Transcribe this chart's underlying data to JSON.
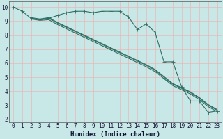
{
  "line1_x": [
    0,
    1,
    2,
    3,
    4,
    5,
    6,
    7,
    8,
    9,
    10,
    11,
    12,
    13,
    14,
    15,
    16,
    17,
    18,
    19,
    20,
    21,
    22,
    23
  ],
  "line1_y": [
    10.0,
    9.7,
    9.2,
    9.1,
    9.2,
    9.4,
    9.6,
    9.7,
    9.7,
    9.6,
    9.7,
    9.7,
    9.7,
    9.3,
    8.4,
    8.8,
    8.2,
    6.1,
    6.1,
    4.3,
    3.3,
    3.3,
    2.5,
    2.6
  ],
  "line2_x": [
    2,
    3,
    4,
    5,
    6,
    7,
    8,
    9,
    10,
    11,
    12,
    13,
    14,
    15,
    16,
    17,
    18,
    19,
    20,
    21,
    22,
    23
  ],
  "line2_y": [
    9.15,
    9.05,
    9.1,
    8.75,
    8.45,
    8.15,
    7.85,
    7.55,
    7.25,
    6.95,
    6.65,
    6.35,
    6.05,
    5.75,
    5.4,
    4.9,
    4.4,
    4.1,
    3.8,
    3.4,
    2.9,
    2.55
  ],
  "line3_x": [
    2,
    3,
    4,
    5,
    6,
    7,
    8,
    9,
    10,
    11,
    12,
    13,
    14,
    15,
    16,
    17,
    18,
    19,
    20,
    21,
    22,
    23
  ],
  "line3_y": [
    9.2,
    9.1,
    9.2,
    8.85,
    8.55,
    8.25,
    7.95,
    7.65,
    7.35,
    7.05,
    6.75,
    6.45,
    6.15,
    5.85,
    5.5,
    5.0,
    4.5,
    4.2,
    3.9,
    3.5,
    3.0,
    2.65
  ],
  "line4_x": [
    2,
    3,
    4,
    5,
    6,
    7,
    8,
    9,
    10,
    11,
    12,
    13,
    14,
    15,
    16,
    17,
    18,
    19,
    20,
    21,
    22,
    23
  ],
  "line4_y": [
    9.25,
    9.15,
    9.25,
    8.9,
    8.6,
    8.3,
    8.0,
    7.7,
    7.4,
    7.1,
    6.8,
    6.5,
    6.2,
    5.9,
    5.55,
    5.05,
    4.55,
    4.25,
    3.95,
    3.55,
    3.05,
    2.7
  ],
  "line_color": "#2e6e63",
  "bg_color": "#c8e8e8",
  "grid_color": "#e8b8b8",
  "xlim": [
    -0.5,
    23.5
  ],
  "ylim": [
    1.8,
    10.4
  ],
  "yticks": [
    2,
    3,
    4,
    5,
    6,
    7,
    8,
    9,
    10
  ],
  "xticks": [
    0,
    1,
    2,
    3,
    4,
    5,
    6,
    7,
    8,
    9,
    10,
    11,
    12,
    13,
    14,
    15,
    16,
    17,
    18,
    19,
    20,
    21,
    22,
    23
  ],
  "xlabel": "Humidex (Indice chaleur)",
  "xlabel_fontsize": 6.5,
  "tick_fontsize": 5.5,
  "marker_size": 2.0,
  "line_width": 0.8
}
